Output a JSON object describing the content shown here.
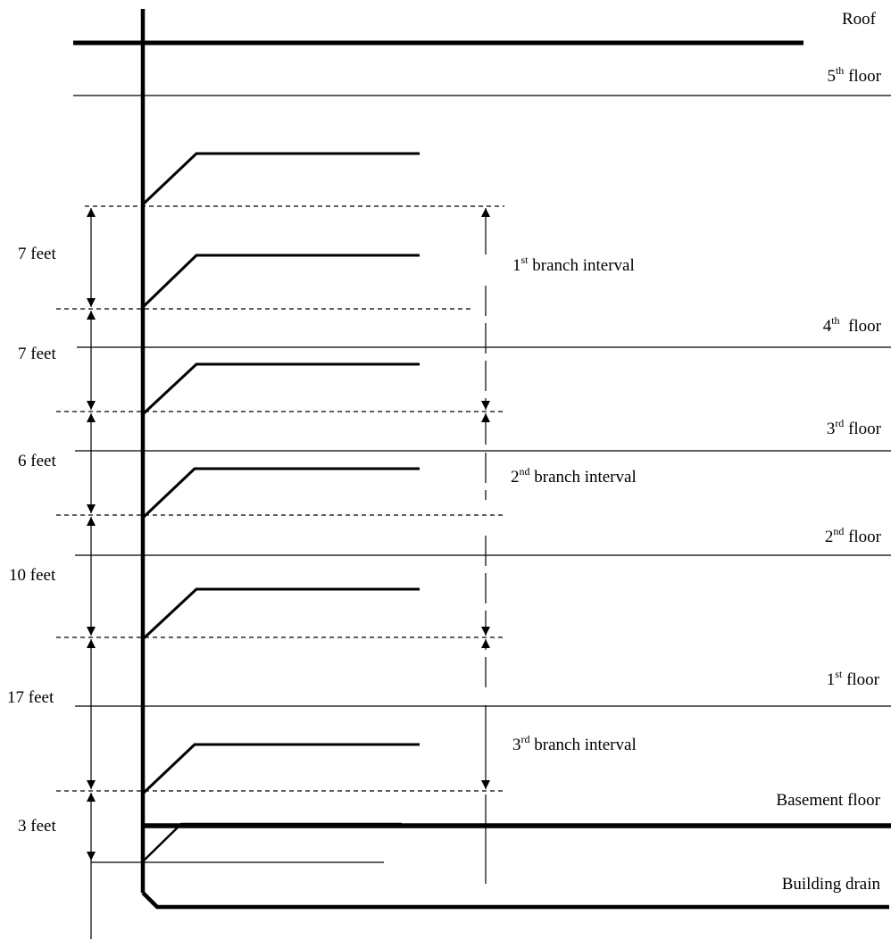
{
  "floors": {
    "roof": "Roof",
    "fifth": {
      "num": "5",
      "sup": "th",
      "word": " floor"
    },
    "fourth": {
      "num": "4",
      "sup": "th",
      "word": "  floor"
    },
    "third": {
      "num": "3",
      "sup": "rd",
      "word": " floor"
    },
    "second": {
      "num": "2",
      "sup": "nd",
      "word": " floor"
    },
    "first": {
      "num": "1",
      "sup": "st",
      "word": " floor"
    },
    "basement": "Basement floor",
    "building_drain": "Building drain"
  },
  "branch_intervals": {
    "first": {
      "num": "1",
      "sup": "st",
      "word": " branch interval"
    },
    "second": {
      "num": "2",
      "sup": "nd",
      "word": " branch interval"
    },
    "third": {
      "num": "3",
      "sup": "rd",
      "word": " branch interval"
    }
  },
  "distances": [
    "7 feet",
    "7 feet",
    "6 feet",
    "10 feet",
    "17 feet",
    "3 feet"
  ]
}
